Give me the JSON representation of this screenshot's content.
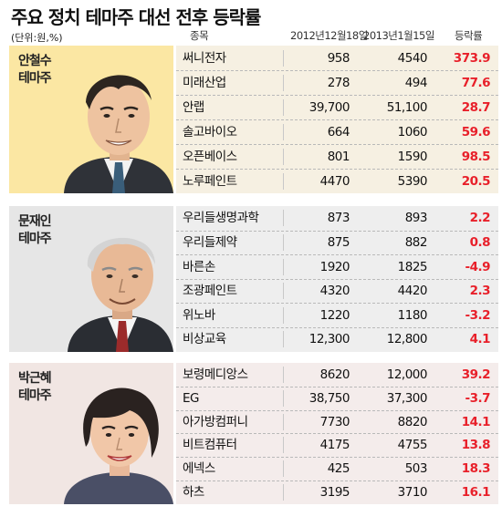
{
  "title": "주요 정치 테마주 대선 전후 등락률",
  "unit": "(단위:원,%)",
  "headers": {
    "stock": "종목",
    "date1": "2012년12월18일",
    "date2": "2013년1월15일",
    "change": "등락률"
  },
  "colors": {
    "group1_bg": "#fbe7a3",
    "group1_table": "#f6f0e2",
    "group2_bg": "#e6e6e6",
    "group2_table": "#eeeeee",
    "group3_bg": "#f1e6e3",
    "group3_table": "#f4eceb",
    "positive": "#e8202a",
    "negative": "#e8202a"
  },
  "chart_data": {
    "type": "table",
    "title": "주요 정치 테마주 대선 전후 등락률",
    "unit": "(단위:원,%)",
    "columns": [
      "종목",
      "2012년12월18일",
      "2013년1월15일",
      "등락률"
    ],
    "groups": [
      {
        "name": "안철수\n테마주",
        "rows": [
          {
            "stock": "써니전자",
            "v1": "958",
            "v2": "4540",
            "change": "373.9"
          },
          {
            "stock": "미래산업",
            "v1": "278",
            "v2": "494",
            "change": "77.6"
          },
          {
            "stock": "안랩",
            "v1": "39,700",
            "v2": "51,100",
            "change": "28.7"
          },
          {
            "stock": "솔고바이오",
            "v1": "664",
            "v2": "1060",
            "change": "59.6"
          },
          {
            "stock": "오픈베이스",
            "v1": "801",
            "v2": "1590",
            "change": "98.5"
          },
          {
            "stock": "노루페인트",
            "v1": "4470",
            "v2": "5390",
            "change": "20.5"
          }
        ]
      },
      {
        "name": "문재인\n테마주",
        "rows": [
          {
            "stock": "우리들생명과학",
            "v1": "873",
            "v2": "893",
            "change": "2.2"
          },
          {
            "stock": "우리들제약",
            "v1": "875",
            "v2": "882",
            "change": "0.8"
          },
          {
            "stock": "바른손",
            "v1": "1920",
            "v2": "1825",
            "change": "-4.9"
          },
          {
            "stock": "조광페인트",
            "v1": "4320",
            "v2": "4420",
            "change": "2.3"
          },
          {
            "stock": "위노바",
            "v1": "1220",
            "v2": "1180",
            "change": "-3.2"
          },
          {
            "stock": "비상교육",
            "v1": "12,300",
            "v2": "12,800",
            "change": "4.1"
          }
        ]
      },
      {
        "name": "박근혜\n테마주",
        "rows": [
          {
            "stock": "보령메디앙스",
            "v1": "8620",
            "v2": "12,000",
            "change": "39.2"
          },
          {
            "stock": "EG",
            "v1": "38,750",
            "v2": "37,300",
            "change": "-3.7"
          },
          {
            "stock": "아가방컴퍼니",
            "v1": "7730",
            "v2": "8820",
            "change": "14.1"
          },
          {
            "stock": "비트컴퓨터",
            "v1": "4175",
            "v2": "4755",
            "change": "13.8"
          },
          {
            "stock": "에넥스",
            "v1": "425",
            "v2": "503",
            "change": "18.3"
          },
          {
            "stock": "하츠",
            "v1": "3195",
            "v2": "3710",
            "change": "16.1"
          }
        ]
      }
    ]
  }
}
